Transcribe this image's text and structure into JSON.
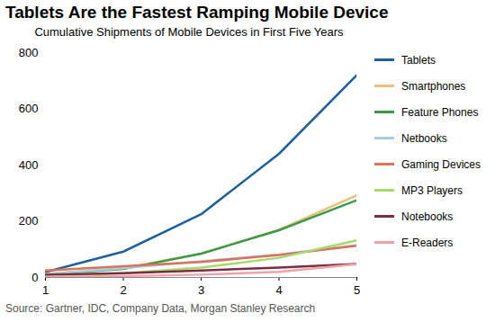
{
  "chart_data": {
    "type": "line",
    "title": "Tablets Are the Fastest Ramping Mobile Device",
    "subtitle": "Cumulative Shipments of Mobile Devices in First Five Years",
    "caption": "Source: Gartner, IDC, Company Data, Morgan Stanley Research",
    "x": [
      1,
      2,
      3,
      4,
      5
    ],
    "xlim": [
      1,
      5
    ],
    "xticks": [
      1,
      2,
      3,
      4,
      5
    ],
    "ylim": [
      0,
      800
    ],
    "yticks": [
      0,
      200,
      400,
      600,
      800
    ],
    "grid": false,
    "legend": "right",
    "series": [
      {
        "name": "Tablets",
        "color": "#1f5f9c",
        "values": [
          19,
          92,
          225,
          440,
          720
        ]
      },
      {
        "name": "Smartphones",
        "color": "#e8c27a",
        "values": [
          13,
          33,
          85,
          170,
          292
        ]
      },
      {
        "name": "Feature Phones",
        "color": "#3a9a4a",
        "values": [
          10,
          30,
          85,
          168,
          275
        ]
      },
      {
        "name": "Netbooks",
        "color": "#a8cde2",
        "values": [
          12,
          33,
          58,
          82,
          115
        ]
      },
      {
        "name": "Gaming Devices",
        "color": "#d9735a",
        "values": [
          25,
          40,
          55,
          80,
          113
        ]
      },
      {
        "name": "MP3 Players",
        "color": "#a8d86e",
        "values": [
          5,
          15,
          35,
          70,
          132
        ]
      },
      {
        "name": "Notebooks",
        "color": "#7a2e40",
        "values": [
          10,
          15,
          25,
          35,
          48
        ]
      },
      {
        "name": "E-Readers",
        "color": "#f2a0a8",
        "values": [
          2,
          5,
          10,
          20,
          47
        ]
      }
    ]
  }
}
